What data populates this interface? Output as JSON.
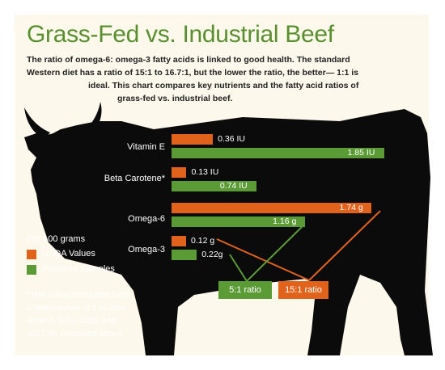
{
  "title": "Grass-Fed vs. Industrial Beef",
  "intro_lines": [
    "The ratio of omega-6: omega-3 fatty acids is linked to good health. The standard",
    "Western diet has a ratio of 15:1 to 16.7:1, but the lower the ratio, the better— 1:1 is",
    "ideal. This chart compares key nutrients and the fatty acid ratios of",
    "grass-fed vs. industrial beef."
  ],
  "colors": {
    "usda": "#e0621b",
    "pastured": "#5b9b35",
    "title": "#5a8f2f",
    "silhouette": "#0b0b0b"
  },
  "legend": {
    "title": "Per 100 grams",
    "items": [
      "USDA Values",
      "Pastured Samples"
    ]
  },
  "footnote_lines": [
    "*This value calculated from",
    "a meta-review of 3 studies",
    "done in 2002, 2005 and",
    "2007 on crossbred steers."
  ],
  "ratios": {
    "pastured": "5:1 ratio",
    "usda": "15:1 ratio"
  },
  "chart_data": {
    "type": "bar",
    "categories": [
      "Vitamin E",
      "Beta Carotene*",
      "Omega-6",
      "Omega-3"
    ],
    "series": [
      {
        "name": "USDA Values",
        "values": [
          0.36,
          0.13,
          1.74,
          0.12
        ],
        "labels": [
          "0.36 IU",
          "0.13 IU",
          "1.74 g",
          "0.12 g"
        ]
      },
      {
        "name": "Pastured Samples",
        "values": [
          1.85,
          0.74,
          1.16,
          0.22
        ],
        "labels": [
          "1.85 IU",
          "0.74 IU",
          "1.16 g",
          "0.22g"
        ]
      }
    ]
  }
}
